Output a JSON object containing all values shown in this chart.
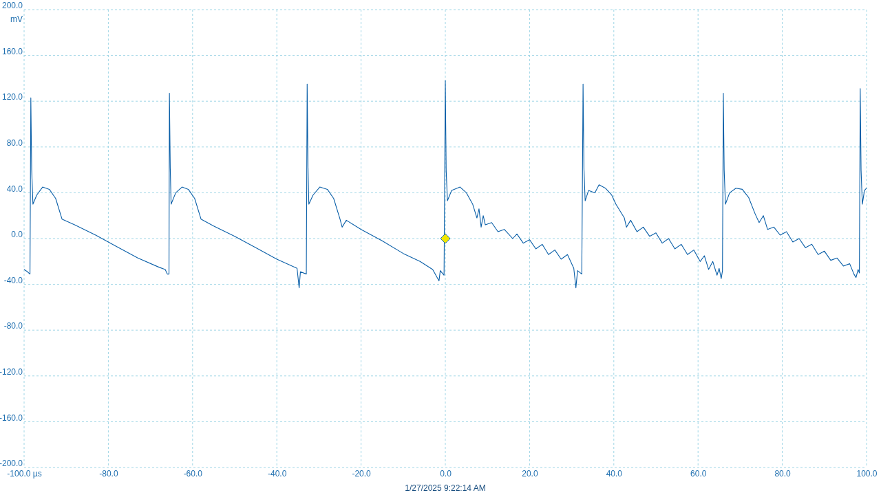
{
  "chart_data": {
    "type": "line",
    "ylabel": "mV",
    "annotations": [
      "1/27/2025 9:22:14 AM"
    ],
    "xlim": [
      -100,
      100
    ],
    "ylim": [
      -200,
      200
    ],
    "xticks": [
      {
        "value": -100,
        "label": "-100.0 µs"
      },
      {
        "value": -80,
        "label": "-80.0"
      },
      {
        "value": -60,
        "label": "-60.0"
      },
      {
        "value": -40,
        "label": "-40.0"
      },
      {
        "value": -20,
        "label": "-20.0"
      },
      {
        "value": 0,
        "label": "0.0"
      },
      {
        "value": 20,
        "label": "20.0"
      },
      {
        "value": 40,
        "label": "40.0"
      },
      {
        "value": 60,
        "label": "60.0"
      },
      {
        "value": 80,
        "label": "80.0"
      },
      {
        "value": 100,
        "label": "100.0"
      }
    ],
    "yticks": [
      {
        "value": -200,
        "label": "-200.0"
      },
      {
        "value": -160,
        "label": "-160.0"
      },
      {
        "value": -120,
        "label": "-120.0"
      },
      {
        "value": -80,
        "label": "-80.0"
      },
      {
        "value": -40,
        "label": "-40.0"
      },
      {
        "value": 0,
        "label": "0.0"
      },
      {
        "value": 40,
        "label": "40.0"
      },
      {
        "value": 80,
        "label": "80.0"
      },
      {
        "value": 120,
        "label": "120.0"
      },
      {
        "value": 160,
        "label": "160.0"
      },
      {
        "value": 200,
        "label": "200.0"
      }
    ],
    "grid": true,
    "line_style": "solid",
    "series": [
      {
        "color": "#0a5fa8",
        "x": [
          -100,
          -99.2,
          -98.6,
          -98.4,
          -98.2,
          -97.9,
          -97,
          -95.6,
          -94,
          -92.5,
          -91,
          -88,
          -83,
          -78,
          -73,
          -68,
          -66.5,
          -66,
          -65.6,
          -65.5,
          -65.3,
          -65.1,
          -64,
          -62.5,
          -61,
          -59.5,
          -58,
          -55,
          -50,
          -45,
          -40,
          -35.2,
          -34.7,
          -34.4,
          -33,
          -32.8,
          -32.6,
          -32.4,
          -31.4,
          -29.8,
          -28,
          -26.5,
          -25,
          -24.5,
          -23.5,
          -20,
          -15,
          -10,
          -6,
          -3,
          -1.5,
          -1.2,
          -0.3,
          0,
          0.2,
          0.5,
          1.5,
          3.5,
          5,
          6.5,
          7.5,
          8,
          8.5,
          9,
          9.5,
          11,
          12.5,
          14,
          16,
          17,
          18.5,
          20,
          21.5,
          23,
          24.5,
          26,
          27.5,
          29,
          30.5,
          31,
          31.4,
          32.4,
          32.7,
          32.9,
          33.2,
          34,
          35.5,
          36.5,
          38,
          39.5,
          40.5,
          41.5,
          42.5,
          43,
          44,
          45.5,
          47,
          48.5,
          50,
          51.5,
          53,
          54.5,
          56,
          57.5,
          59,
          60.5,
          61.5,
          62.5,
          63.5,
          64.5,
          65,
          65.5,
          65.8,
          66,
          66.2,
          66.5,
          67.5,
          69,
          70.5,
          72,
          73.5,
          74.5,
          75.5,
          76.5,
          78,
          79.5,
          81,
          82.5,
          84,
          85.5,
          87,
          88.5,
          90,
          91.5,
          93,
          94.5,
          96,
          97,
          97.5,
          98,
          98.3,
          98.5,
          98.7,
          99,
          99.5,
          100
        ],
        "values": [
          -27,
          -29,
          -31,
          123,
          60,
          30,
          38,
          45,
          43,
          35,
          17,
          12,
          3,
          -7,
          -17,
          -25,
          -27,
          -31,
          -31,
          127,
          62,
          30,
          40,
          45,
          43,
          35,
          17,
          11,
          2,
          -8,
          -18,
          -26,
          -43,
          -29,
          -31,
          135,
          62,
          30,
          38,
          45,
          43,
          35,
          17,
          10,
          16,
          8,
          -2,
          -13,
          -20,
          -27,
          -37,
          -28,
          -32,
          138,
          60,
          33,
          42,
          45,
          40,
          30,
          18,
          26,
          10,
          20,
          12,
          14,
          6,
          8,
          0,
          4,
          -4,
          -1,
          -9,
          -5,
          -14,
          -10,
          -18,
          -14,
          -26,
          -43,
          -28,
          -31,
          135,
          62,
          33,
          42,
          40,
          47,
          44,
          38,
          30,
          24,
          18,
          10,
          16,
          6,
          10,
          2,
          5,
          -4,
          0,
          -9,
          -5,
          -14,
          -10,
          -20,
          -15,
          -27,
          -20,
          -32,
          -26,
          -35,
          -28,
          127,
          60,
          30,
          40,
          44,
          43,
          36,
          22,
          14,
          20,
          8,
          10,
          3,
          6,
          -3,
          0,
          -8,
          -5,
          -14,
          -11,
          -19,
          -17,
          -24,
          -22,
          -31,
          -34,
          -27,
          -30,
          131,
          60,
          30,
          42,
          44
        ]
      }
    ]
  }
}
